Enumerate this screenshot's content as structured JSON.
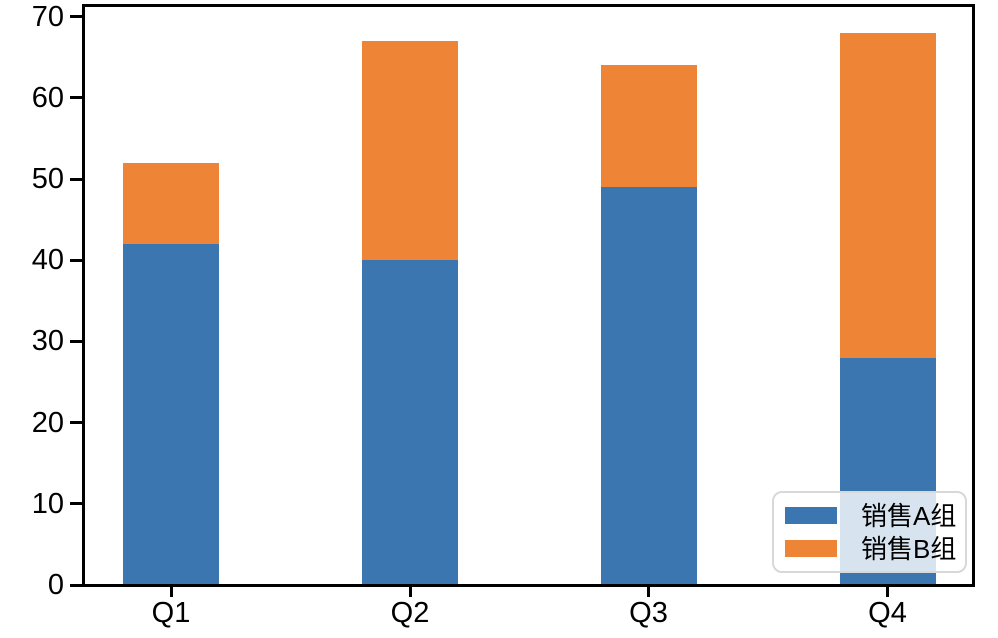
{
  "chart_data": {
    "type": "bar",
    "stacked": true,
    "title": "",
    "xlabel": "",
    "ylabel": "",
    "categories": [
      "Q1",
      "Q2",
      "Q3",
      "Q4"
    ],
    "series": [
      {
        "name": "销售A组",
        "color": "#3b76b0",
        "values": [
          42,
          40,
          49,
          28
        ]
      },
      {
        "name": "销售B组",
        "color": "#ee8536",
        "values": [
          10,
          27,
          15,
          40
        ]
      }
    ],
    "stack_totals": [
      52,
      67,
      64,
      68
    ],
    "yticks": [
      0,
      10,
      20,
      30,
      40,
      50,
      60,
      70
    ],
    "ylim": [
      0,
      71.6
    ],
    "grid": false,
    "legend_position": "lower right",
    "background_color": "#ffffff",
    "spine_color": "#000000",
    "text_color": "#000000",
    "legend_border_color": "#d8d8d8"
  }
}
